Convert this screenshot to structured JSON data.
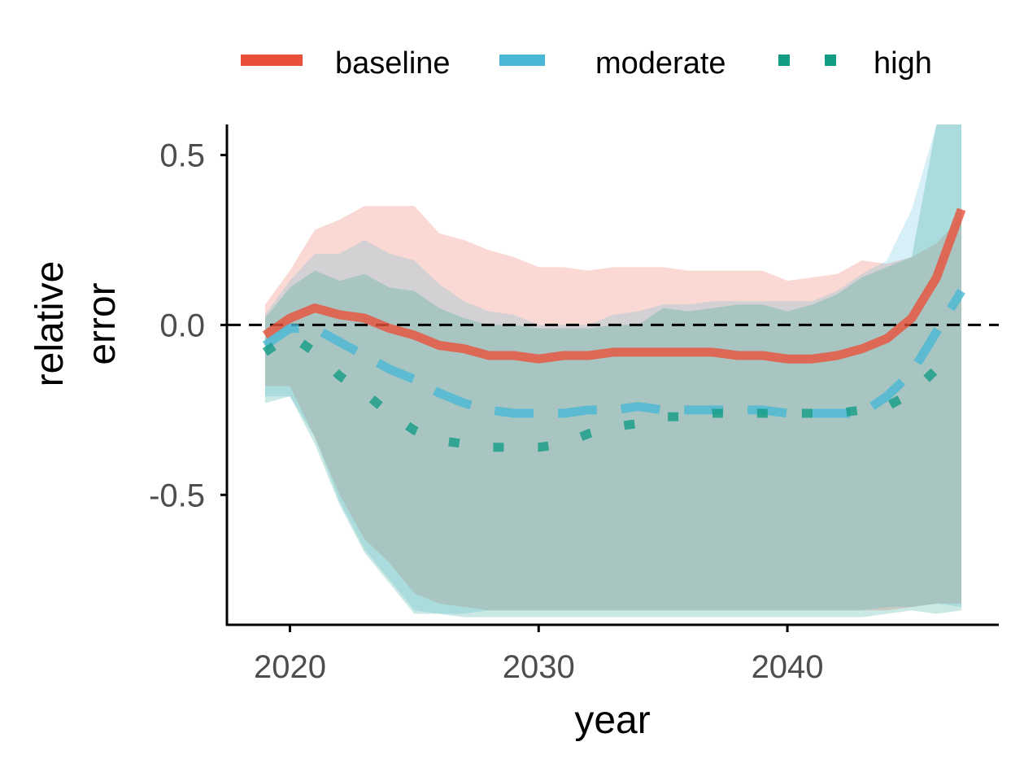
{
  "chart_data": {
    "type": "line",
    "title": "",
    "xlabel": "year",
    "ylabel": [
      "relative",
      "error"
    ],
    "xlim": [
      2017.5,
      2048.5
    ],
    "ylim": [
      -0.88,
      0.59
    ],
    "x_ticks": [
      2020,
      2030,
      2040
    ],
    "x_tick_labels": [
      "2020",
      "2030",
      "2040"
    ],
    "y_ticks": [
      0.5,
      0.0,
      -0.5
    ],
    "y_tick_labels": [
      "0.5",
      "0.0",
      "-0.5"
    ],
    "reference_line": {
      "y": 0.0,
      "style": "dashed",
      "color": "#000000"
    },
    "legend": {
      "position": "top",
      "entries": [
        "baseline",
        "moderate",
        "high"
      ]
    },
    "x": [
      2019,
      2020,
      2021,
      2022,
      2023,
      2024,
      2025,
      2026,
      2027,
      2028,
      2029,
      2030,
      2031,
      2032,
      2033,
      2034,
      2035,
      2036,
      2037,
      2038,
      2039,
      2040,
      2041,
      2042,
      2043,
      2044,
      2045,
      2046,
      2047
    ],
    "series": [
      {
        "name": "baseline",
        "color": "#e8503a",
        "line_style": "solid",
        "values": [
          -0.03,
          0.02,
          0.05,
          0.03,
          0.02,
          -0.01,
          -0.03,
          -0.06,
          -0.07,
          -0.09,
          -0.09,
          -0.1,
          -0.09,
          -0.09,
          -0.08,
          -0.08,
          -0.08,
          -0.08,
          -0.08,
          -0.09,
          -0.09,
          -0.1,
          -0.1,
          -0.09,
          -0.07,
          -0.04,
          0.02,
          0.14,
          0.34
        ],
        "upper": [
          0.06,
          0.16,
          0.28,
          0.31,
          0.35,
          0.35,
          0.35,
          0.27,
          0.25,
          0.22,
          0.2,
          0.17,
          0.17,
          0.16,
          0.17,
          0.17,
          0.17,
          0.16,
          0.16,
          0.16,
          0.16,
          0.13,
          0.14,
          0.15,
          0.19,
          0.18,
          0.2,
          0.24,
          0.32
        ],
        "lower": [
          -0.18,
          -0.18,
          -0.33,
          -0.5,
          -0.63,
          -0.7,
          -0.79,
          -0.82,
          -0.83,
          -0.84,
          -0.84,
          -0.84,
          -0.84,
          -0.84,
          -0.84,
          -0.84,
          -0.84,
          -0.84,
          -0.84,
          -0.84,
          -0.84,
          -0.84,
          -0.84,
          -0.84,
          -0.84,
          -0.84,
          -0.83,
          -0.82,
          -0.82
        ]
      },
      {
        "name": "moderate",
        "color": "#4ab8d5",
        "line_style": "dashed",
        "values": [
          -0.06,
          -0.01,
          -0.01,
          -0.05,
          -0.09,
          -0.13,
          -0.16,
          -0.2,
          -0.23,
          -0.25,
          -0.26,
          -0.26,
          -0.26,
          -0.25,
          -0.25,
          -0.24,
          -0.25,
          -0.25,
          -0.25,
          -0.25,
          -0.25,
          -0.26,
          -0.26,
          -0.26,
          -0.26,
          -0.21,
          -0.14,
          -0.02,
          0.1
        ],
        "upper": [
          0.03,
          0.13,
          0.21,
          0.21,
          0.25,
          0.21,
          0.19,
          0.12,
          0.07,
          0.04,
          0.03,
          0.0,
          0.0,
          0.0,
          0.03,
          0.04,
          0.06,
          0.06,
          0.07,
          0.07,
          0.07,
          0.07,
          0.07,
          0.1,
          0.15,
          0.19,
          0.34,
          0.59,
          0.59
        ],
        "lower": [
          -0.21,
          -0.21,
          -0.33,
          -0.52,
          -0.66,
          -0.75,
          -0.84,
          -0.85,
          -0.85,
          -0.84,
          -0.84,
          -0.84,
          -0.84,
          -0.84,
          -0.84,
          -0.84,
          -0.84,
          -0.84,
          -0.84,
          -0.84,
          -0.84,
          -0.84,
          -0.84,
          -0.84,
          -0.84,
          -0.83,
          -0.83,
          -0.82,
          -0.83
        ]
      },
      {
        "name": "high",
        "color": "#139c84",
        "line_style": "dotted",
        "values": [
          -0.08,
          -0.03,
          -0.08,
          -0.15,
          -0.2,
          -0.26,
          -0.31,
          -0.34,
          -0.35,
          -0.36,
          -0.36,
          -0.36,
          -0.35,
          -0.32,
          -0.3,
          -0.29,
          -0.27,
          -0.27,
          -0.26,
          -0.26,
          -0.26,
          -0.26,
          -0.26,
          -0.26,
          -0.25,
          -0.24,
          -0.2,
          -0.13,
          -0.1
        ],
        "upper": [
          0.02,
          0.11,
          0.16,
          0.13,
          0.15,
          0.11,
          0.1,
          0.05,
          0.02,
          0.0,
          0.0,
          -0.01,
          -0.01,
          -0.01,
          0.0,
          0.0,
          0.05,
          0.04,
          0.05,
          0.06,
          0.06,
          0.04,
          0.06,
          0.09,
          0.14,
          0.17,
          0.2,
          0.59,
          0.59
        ],
        "lower": [
          -0.23,
          -0.21,
          -0.35,
          -0.53,
          -0.67,
          -0.76,
          -0.85,
          -0.85,
          -0.86,
          -0.86,
          -0.86,
          -0.86,
          -0.86,
          -0.86,
          -0.86,
          -0.86,
          -0.86,
          -0.86,
          -0.86,
          -0.86,
          -0.86,
          -0.86,
          -0.86,
          -0.86,
          -0.86,
          -0.85,
          -0.84,
          -0.85,
          -0.84
        ]
      }
    ]
  }
}
